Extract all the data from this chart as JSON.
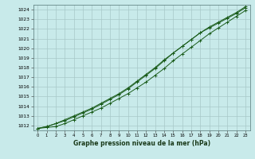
{
  "bg_color": "#c8eaea",
  "grid_color": "#a8c8c8",
  "line_color": "#1a5c1a",
  "xlabel": "Graphe pression niveau de la mer (hPa)",
  "ylim": [
    1011.5,
    1024.5
  ],
  "xlim": [
    -0.5,
    23.5
  ],
  "yticks": [
    1012,
    1013,
    1014,
    1015,
    1016,
    1017,
    1018,
    1019,
    1020,
    1021,
    1022,
    1023,
    1024
  ],
  "xticks": [
    0,
    1,
    2,
    3,
    4,
    5,
    6,
    7,
    8,
    9,
    10,
    11,
    12,
    13,
    14,
    15,
    16,
    17,
    18,
    19,
    20,
    21,
    22,
    23
  ],
  "series1": [
    1011.7,
    1011.8,
    1011.9,
    1012.2,
    1012.6,
    1013.0,
    1013.4,
    1013.8,
    1014.3,
    1014.8,
    1015.3,
    1015.9,
    1016.5,
    1017.2,
    1017.9,
    1018.7,
    1019.4,
    1020.1,
    1020.8,
    1021.5,
    1022.1,
    1022.7,
    1023.3,
    1023.9
  ],
  "series2": [
    1011.7,
    1011.9,
    1012.2,
    1012.6,
    1013.0,
    1013.4,
    1013.8,
    1014.3,
    1014.8,
    1015.3,
    1015.9,
    1016.6,
    1017.3,
    1018.0,
    1018.8,
    1019.5,
    1020.2,
    1020.9,
    1021.6,
    1022.2,
    1022.7,
    1023.2,
    1023.7,
    1024.3
  ],
  "series3": [
    1011.7,
    1011.9,
    1012.2,
    1012.5,
    1012.9,
    1013.3,
    1013.7,
    1014.2,
    1014.7,
    1015.2,
    1015.8,
    1016.5,
    1017.2,
    1017.9,
    1018.7,
    1019.5,
    1020.2,
    1020.9,
    1021.6,
    1022.1,
    1022.6,
    1023.1,
    1023.6,
    1024.2
  ]
}
